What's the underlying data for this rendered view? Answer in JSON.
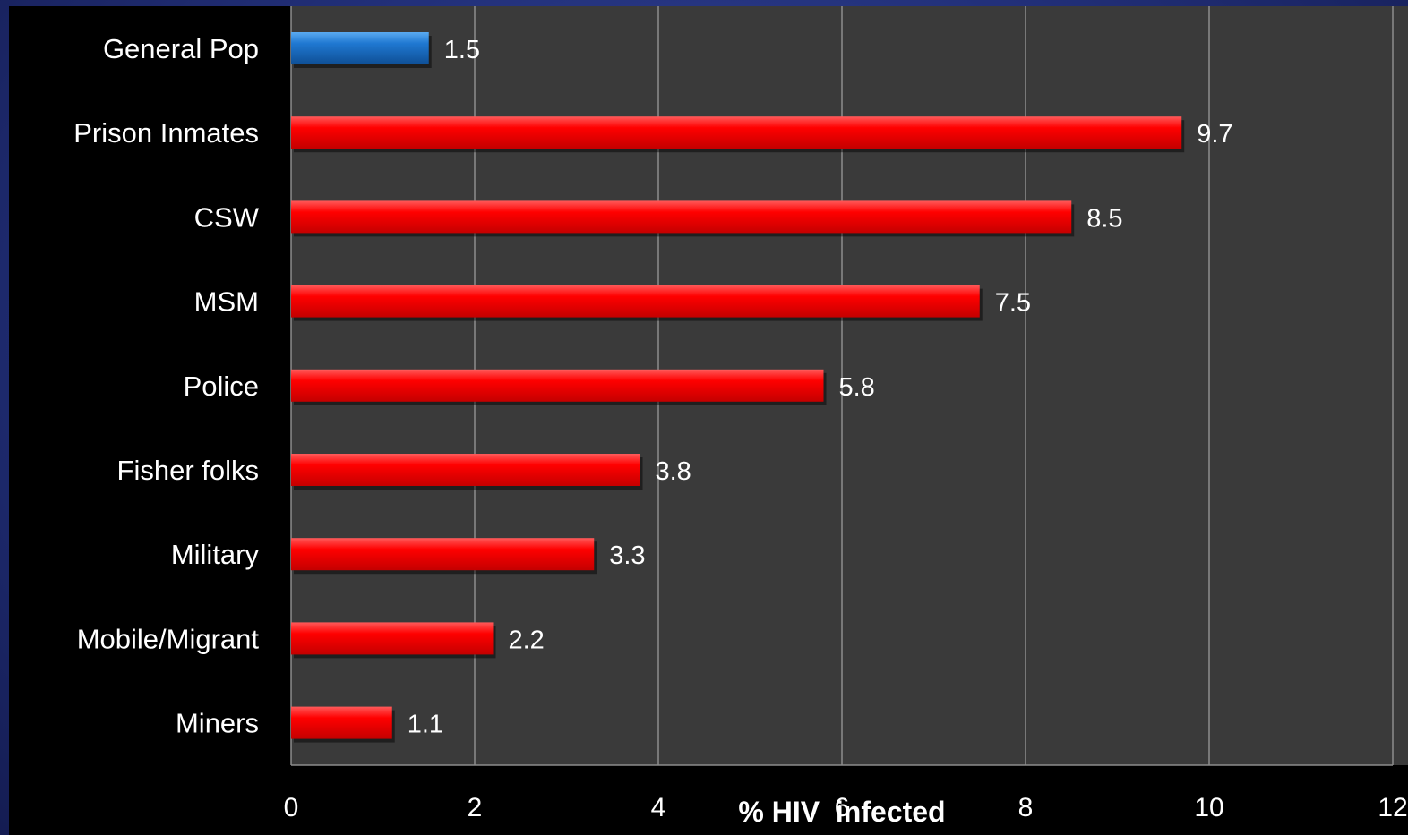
{
  "chart_data": {
    "type": "bar",
    "orientation": "horizontal",
    "categories": [
      "General Pop",
      "Prison Inmates",
      "CSW",
      "MSM",
      "Police",
      "Fisher folks",
      "Military",
      "Mobile/Migrant",
      "Miners"
    ],
    "values": [
      1.5,
      9.7,
      8.5,
      7.5,
      5.8,
      3.8,
      3.3,
      2.2,
      1.1
    ],
    "bar_colors": [
      "#1f78d1",
      "#ff0000",
      "#ff0000",
      "#ff0000",
      "#ff0000",
      "#ff0000",
      "#ff0000",
      "#ff0000",
      "#ff0000"
    ],
    "xlabel": "% HIV  infected",
    "xlim": [
      0,
      12
    ],
    "xticks": [
      0,
      2,
      4,
      6,
      8,
      10,
      12
    ],
    "grid": true,
    "legend": "none"
  },
  "colors": {
    "plot_background": "#3a3a3a",
    "gridline": "#8c8c8c",
    "text": "#ffffff",
    "frame": "#22307a"
  }
}
